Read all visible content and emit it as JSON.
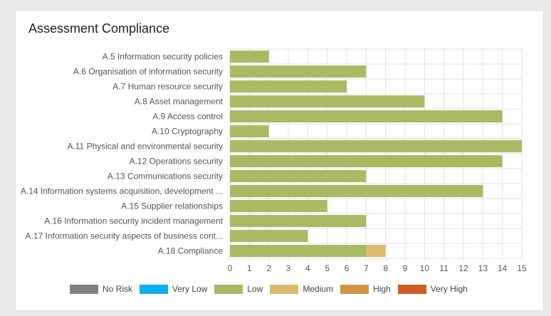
{
  "card": {
    "title": "Assessment Compliance"
  },
  "chart_data": {
    "type": "bar",
    "orientation": "horizontal",
    "stacked": true,
    "title": "Assessment Compliance",
    "categories": [
      "A.5 Information security policies",
      "A.6 Organisation of information security",
      "A.7 Human resource security",
      "A.8 Asset management",
      "A.9 Access control",
      "A.10 Cryptography",
      "A.11 Physical and environmental security",
      "A.12 Operations security",
      "A.13 Communications security",
      "A.14 Information systems acquisition, development ...",
      "A.15 Supplier relationships",
      "A.16 Information security incident management",
      "A.17 Information security aspects of business cont...",
      "A.18 Compliance"
    ],
    "series": [
      {
        "name": "No Risk",
        "color": "#808080",
        "values": [
          0,
          0,
          0,
          0,
          0,
          0,
          0,
          0,
          0,
          0,
          0,
          0,
          0,
          0
        ]
      },
      {
        "name": "Very Low",
        "color": "#0cb0f0",
        "values": [
          0,
          0,
          0,
          0,
          0,
          0,
          0,
          0,
          0,
          0,
          0,
          0,
          0,
          0
        ]
      },
      {
        "name": "Low",
        "color": "#a8bb62",
        "values": [
          2,
          7,
          6,
          10,
          14,
          2,
          15,
          14,
          7,
          13,
          5,
          7,
          4,
          7
        ]
      },
      {
        "name": "Medium",
        "color": "#dcba6c",
        "values": [
          0,
          0,
          0,
          0,
          0,
          0,
          0,
          0,
          0,
          0,
          0,
          0,
          0,
          1
        ]
      },
      {
        "name": "High",
        "color": "#d39345",
        "values": [
          0,
          0,
          0,
          0,
          0,
          0,
          0,
          0,
          0,
          0,
          0,
          0,
          0,
          0
        ]
      },
      {
        "name": "Very High",
        "color": "#ce5e25",
        "values": [
          0,
          0,
          0,
          0,
          0,
          0,
          0,
          0,
          0,
          0,
          0,
          0,
          0,
          0
        ]
      }
    ],
    "xlim": [
      0,
      15
    ],
    "xticks": [
      "0",
      "1",
      "2",
      "3",
      "4",
      "5",
      "6",
      "7",
      "8",
      "9",
      "10",
      "11",
      "12",
      "13",
      "14",
      "15"
    ],
    "grid": true,
    "legend_position": "bottom"
  }
}
